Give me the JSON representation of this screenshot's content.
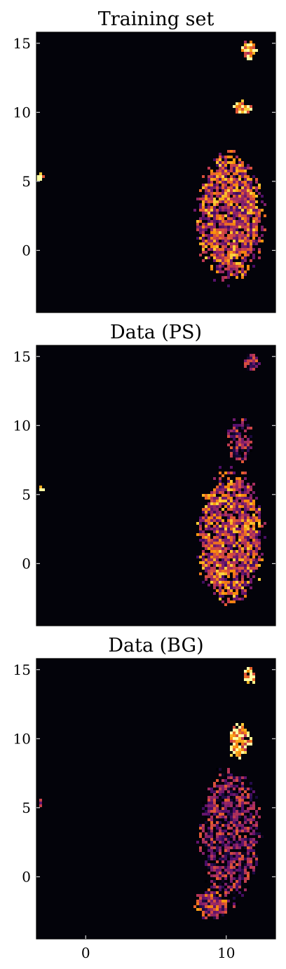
{
  "chart_data": [
    {
      "type": "heatmap",
      "title": "Training set",
      "xlim": [
        -3.5,
        13.5
      ],
      "ylim": [
        -4.5,
        15.8
      ],
      "colormap": "inferno",
      "background_color": "#03030a",
      "yticks": [
        15,
        10,
        5,
        0
      ],
      "xticks": [],
      "blobs": [
        {
          "name": "main-body",
          "x_center": 10.3,
          "y_center": 2.5,
          "x_spread": 2.2,
          "y_spread": 4.5,
          "mean_level": 0.55
        },
        {
          "name": "upper-cap",
          "x_center": 11.2,
          "y_center": 10.3,
          "x_spread": 0.6,
          "y_spread": 0.5,
          "mean_level": 0.85
        },
        {
          "name": "top-spot",
          "x_center": 11.6,
          "y_center": 14.6,
          "x_spread": 0.5,
          "y_spread": 0.7,
          "mean_level": 0.8
        },
        {
          "name": "left-spot",
          "x_center": -3.2,
          "y_center": 5.3,
          "x_spread": 0.2,
          "y_spread": 0.3,
          "mean_level": 0.95
        }
      ]
    },
    {
      "type": "heatmap",
      "title": "Data (PS)",
      "xlim": [
        -3.5,
        13.5
      ],
      "ylim": [
        -4.5,
        15.8
      ],
      "colormap": "inferno",
      "background_color": "#03030a",
      "yticks": [
        15,
        10,
        5,
        0
      ],
      "xticks": [],
      "blobs": [
        {
          "name": "main-body",
          "x_center": 10.3,
          "y_center": 2.0,
          "x_spread": 2.2,
          "y_spread": 4.5,
          "mean_level": 0.55
        },
        {
          "name": "upper-sparse",
          "x_center": 11.0,
          "y_center": 9.0,
          "x_spread": 0.9,
          "y_spread": 1.5,
          "mean_level": 0.3
        },
        {
          "name": "top-spot",
          "x_center": 11.8,
          "y_center": 14.6,
          "x_spread": 0.5,
          "y_spread": 0.7,
          "mean_level": 0.35
        },
        {
          "name": "left-spot",
          "x_center": -3.2,
          "y_center": 5.3,
          "x_spread": 0.2,
          "y_spread": 0.3,
          "mean_level": 0.95
        }
      ]
    },
    {
      "type": "heatmap",
      "title": "Data (BG)",
      "xlim": [
        -3.5,
        13.5
      ],
      "ylim": [
        -4.5,
        15.8
      ],
      "colormap": "inferno",
      "background_color": "#03030a",
      "yticks": [
        15,
        10,
        5,
        0
      ],
      "xticks": [
        0,
        10
      ],
      "blobs": [
        {
          "name": "main-body",
          "x_center": 10.3,
          "y_center": 3.0,
          "x_spread": 2.0,
          "y_spread": 4.5,
          "mean_level": 0.3
        },
        {
          "name": "lower-lobe",
          "x_center": 9.0,
          "y_center": -2.0,
          "x_spread": 1.2,
          "y_spread": 1.0,
          "mean_level": 0.45
        },
        {
          "name": "upper-bright",
          "x_center": 11.0,
          "y_center": 9.8,
          "x_spread": 0.8,
          "y_spread": 1.2,
          "mean_level": 0.85
        },
        {
          "name": "top-spot",
          "x_center": 11.7,
          "y_center": 14.6,
          "x_spread": 0.5,
          "y_spread": 0.7,
          "mean_level": 0.9
        },
        {
          "name": "left-spot",
          "x_center": -3.2,
          "y_center": 5.3,
          "x_spread": 0.2,
          "y_spread": 0.3,
          "mean_level": 0.5
        }
      ]
    }
  ]
}
